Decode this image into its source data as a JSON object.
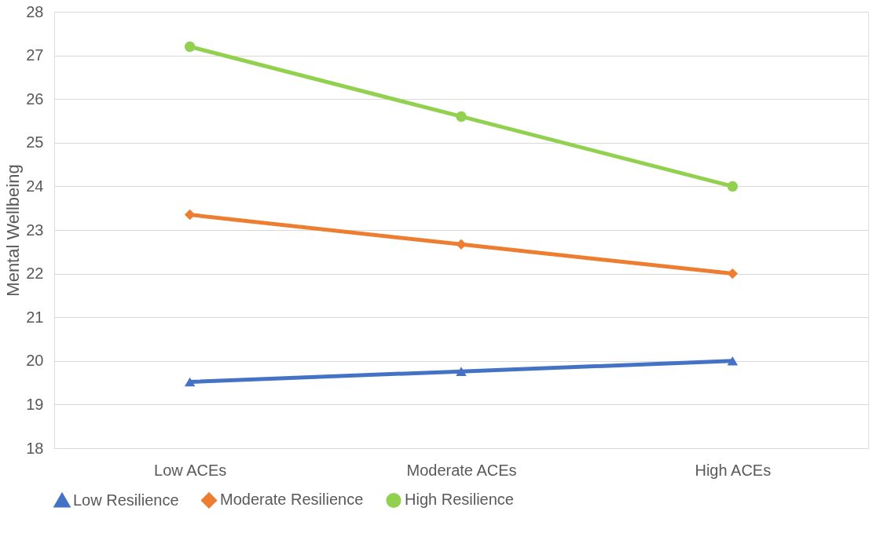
{
  "chart_data": {
    "type": "line",
    "ylabel": "Mental Wellbeing",
    "categories": [
      "Low ACEs",
      "Moderate ACEs",
      "High ACEs"
    ],
    "series": [
      {
        "name": "Low Resilience",
        "color": "#4472c4",
        "marker": "triangle",
        "values": [
          19.52,
          19.76,
          20.0
        ]
      },
      {
        "name": "Moderate Resilience",
        "color": "#ed7d31",
        "marker": "diamond",
        "values": [
          23.35,
          22.67,
          22.0
        ]
      },
      {
        "name": "High Resilience",
        "color": "#92d050",
        "marker": "circle",
        "values": [
          27.2,
          25.6,
          24.0
        ]
      }
    ],
    "ylim": [
      18,
      28
    ],
    "yticks": [
      18,
      19,
      20,
      21,
      22,
      23,
      24,
      25,
      26,
      27,
      28
    ],
    "grid": "y",
    "legend": "bottom",
    "line_style": "solid"
  }
}
